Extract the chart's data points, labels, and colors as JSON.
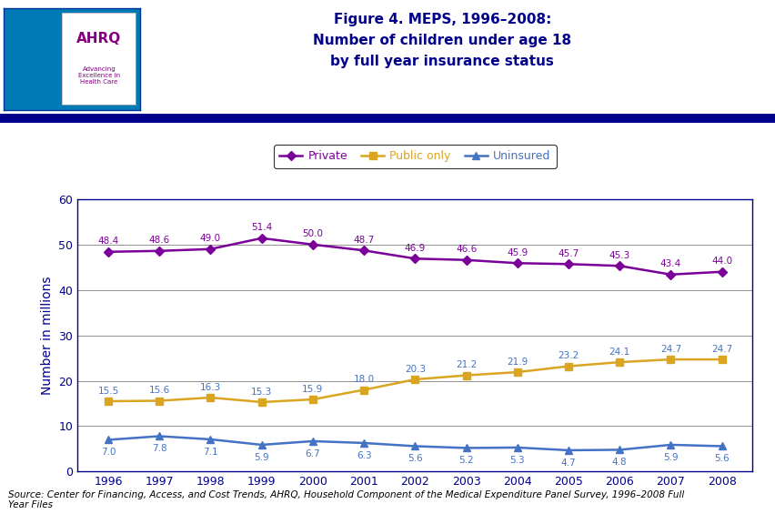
{
  "title_line1": "Figure 4. MEPS, 1996–2008:",
  "title_line2": "Number of children under age 18",
  "title_line3": "by full year insurance status",
  "years": [
    1996,
    1997,
    1998,
    1999,
    2000,
    2001,
    2002,
    2003,
    2004,
    2005,
    2006,
    2007,
    2008
  ],
  "private": [
    48.4,
    48.6,
    49.0,
    51.4,
    50.0,
    48.7,
    46.9,
    46.6,
    45.9,
    45.7,
    45.3,
    43.4,
    44.0
  ],
  "public_only": [
    15.5,
    15.6,
    16.3,
    15.3,
    15.9,
    18.0,
    20.3,
    21.2,
    21.9,
    23.2,
    24.1,
    24.7,
    24.7
  ],
  "uninsured": [
    7.0,
    7.8,
    7.1,
    5.9,
    6.7,
    6.3,
    5.6,
    5.2,
    5.3,
    4.7,
    4.8,
    5.9,
    5.6
  ],
  "private_color": "#7B0099",
  "public_color": "#DAA520",
  "uninsured_color": "#4472C4",
  "ylabel": "Number in millions",
  "ylim": [
    0,
    60
  ],
  "yticks": [
    0,
    10,
    20,
    30,
    40,
    50,
    60
  ],
  "source_text": "Source: Center for Financing, Access, and Cost Trends, AHRQ, Household Component of the Medical Expenditure Panel Survey, 1996–2008 Full\nYear Files",
  "title_color": "#00008B",
  "background_color": "#FFFFFF",
  "header_bar_color": "#00008B",
  "legend_labels": [
    "Private",
    "Public only",
    "Uninsured"
  ],
  "chart_border_color": "#00008B"
}
